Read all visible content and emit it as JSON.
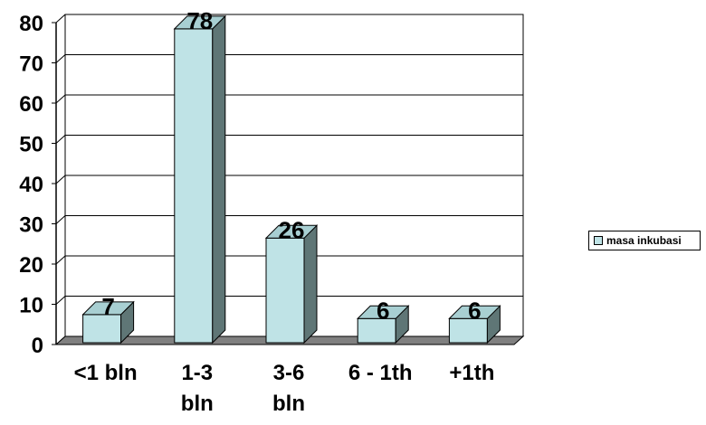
{
  "chart_data": {
    "type": "bar",
    "categories": [
      "<1 bln",
      "1-3 bln",
      "3-6 bln",
      "6 - 1th",
      "+1th"
    ],
    "values": [
      7,
      78,
      26,
      6,
      6
    ],
    "series": [
      {
        "name": "masa inkubasi",
        "values": [
          7,
          78,
          26,
          6,
          6
        ]
      }
    ],
    "ylim": [
      0,
      80
    ],
    "yticks": [
      0,
      10,
      20,
      30,
      40,
      50,
      60,
      70,
      80
    ],
    "grid": true,
    "legend_position": "right",
    "colors": {
      "bar_front": "#bfe3e6",
      "bar_side": "#5f7676",
      "bar_top": "#a8cfd2",
      "floor": "#808080"
    }
  }
}
